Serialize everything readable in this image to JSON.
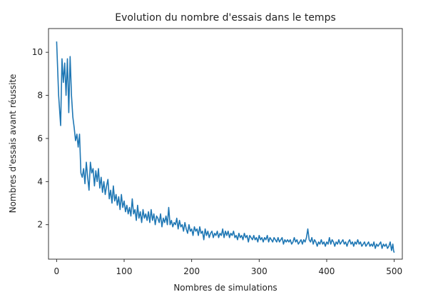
{
  "chart_data": {
    "type": "line",
    "title": "Evolution du nombre d'essais dans le temps",
    "xlabel": "Nombres de simulations",
    "ylabel": "Nombres d'essais avant réussite",
    "xlim": [
      -12,
      512
    ],
    "ylim": [
      0.4,
      11.1
    ],
    "xticks": [
      0,
      100,
      200,
      300,
      400,
      500
    ],
    "yticks": [
      2,
      4,
      6,
      8,
      10
    ],
    "grid": false,
    "legend": "none",
    "series": [
      {
        "color": "#1f77b4",
        "points": [
          [
            0,
            10.5
          ],
          [
            3,
            8.0
          ],
          [
            6,
            6.6
          ],
          [
            8,
            9.7
          ],
          [
            10,
            8.6
          ],
          [
            12,
            9.5
          ],
          [
            14,
            8.0
          ],
          [
            16,
            9.7
          ],
          [
            18,
            7.2
          ],
          [
            20,
            9.8
          ],
          [
            22,
            8.0
          ],
          [
            24,
            7.0
          ],
          [
            26,
            6.5
          ],
          [
            28,
            5.9
          ],
          [
            30,
            6.2
          ],
          [
            32,
            5.6
          ],
          [
            34,
            6.2
          ],
          [
            36,
            4.4
          ],
          [
            38,
            4.2
          ],
          [
            40,
            4.6
          ],
          [
            42,
            3.9
          ],
          [
            44,
            4.9
          ],
          [
            46,
            4.2
          ],
          [
            48,
            3.6
          ],
          [
            50,
            4.9
          ],
          [
            52,
            4.4
          ],
          [
            54,
            4.6
          ],
          [
            56,
            3.8
          ],
          [
            58,
            4.5
          ],
          [
            60,
            4.0
          ],
          [
            62,
            4.6
          ],
          [
            64,
            3.7
          ],
          [
            66,
            4.2
          ],
          [
            68,
            3.5
          ],
          [
            70,
            4.0
          ],
          [
            72,
            3.4
          ],
          [
            74,
            3.8
          ],
          [
            76,
            4.1
          ],
          [
            78,
            3.2
          ],
          [
            80,
            3.6
          ],
          [
            82,
            3.0
          ],
          [
            84,
            3.8
          ],
          [
            86,
            3.1
          ],
          [
            88,
            3.4
          ],
          [
            90,
            2.9
          ],
          [
            92,
            3.3
          ],
          [
            94,
            2.7
          ],
          [
            96,
            3.4
          ],
          [
            98,
            2.8
          ],
          [
            100,
            3.1
          ],
          [
            102,
            2.6
          ],
          [
            104,
            2.9
          ],
          [
            106,
            2.5
          ],
          [
            108,
            2.8
          ],
          [
            110,
            2.4
          ],
          [
            112,
            3.2
          ],
          [
            114,
            2.5
          ],
          [
            116,
            2.7
          ],
          [
            118,
            2.2
          ],
          [
            120,
            2.9
          ],
          [
            122,
            2.3
          ],
          [
            124,
            2.6
          ],
          [
            126,
            2.1
          ],
          [
            128,
            2.7
          ],
          [
            130,
            2.3
          ],
          [
            132,
            2.5
          ],
          [
            134,
            2.2
          ],
          [
            136,
            2.6
          ],
          [
            138,
            2.1
          ],
          [
            140,
            2.7
          ],
          [
            142,
            2.2
          ],
          [
            144,
            2.5
          ],
          [
            146,
            2.0
          ],
          [
            148,
            2.4
          ],
          [
            150,
            2.3
          ],
          [
            152,
            2.1
          ],
          [
            154,
            2.5
          ],
          [
            156,
            1.9
          ],
          [
            158,
            2.3
          ],
          [
            160,
            2.1
          ],
          [
            162,
            2.4
          ],
          [
            164,
            2.0
          ],
          [
            166,
            2.8
          ],
          [
            168,
            2.0
          ],
          [
            170,
            2.2
          ],
          [
            172,
            1.9
          ],
          [
            174,
            2.1
          ],
          [
            176,
            2.0
          ],
          [
            178,
            2.3
          ],
          [
            180,
            1.8
          ],
          [
            182,
            2.2
          ],
          [
            184,
            1.9
          ],
          [
            186,
            2.0
          ],
          [
            188,
            1.7
          ],
          [
            190,
            2.1
          ],
          [
            192,
            1.8
          ],
          [
            194,
            1.6
          ],
          [
            196,
            2.0
          ],
          [
            198,
            1.7
          ],
          [
            200,
            1.8
          ],
          [
            202,
            1.5
          ],
          [
            204,
            1.9
          ],
          [
            206,
            1.7
          ],
          [
            208,
            1.8
          ],
          [
            210,
            1.5
          ],
          [
            212,
            1.9
          ],
          [
            214,
            1.6
          ],
          [
            216,
            1.7
          ],
          [
            218,
            1.3
          ],
          [
            220,
            1.8
          ],
          [
            222,
            1.5
          ],
          [
            224,
            1.7
          ],
          [
            226,
            1.4
          ],
          [
            228,
            1.6
          ],
          [
            230,
            1.7
          ],
          [
            232,
            1.4
          ],
          [
            234,
            1.6
          ],
          [
            236,
            1.5
          ],
          [
            238,
            1.7
          ],
          [
            240,
            1.4
          ],
          [
            242,
            1.6
          ],
          [
            244,
            1.5
          ],
          [
            246,
            1.8
          ],
          [
            248,
            1.4
          ],
          [
            250,
            1.7
          ],
          [
            252,
            1.5
          ],
          [
            254,
            1.7
          ],
          [
            256,
            1.4
          ],
          [
            258,
            1.6
          ],
          [
            260,
            1.5
          ],
          [
            262,
            1.7
          ],
          [
            264,
            1.4
          ],
          [
            266,
            1.5
          ],
          [
            268,
            1.3
          ],
          [
            270,
            1.6
          ],
          [
            272,
            1.4
          ],
          [
            274,
            1.5
          ],
          [
            276,
            1.3
          ],
          [
            278,
            1.6
          ],
          [
            280,
            1.4
          ],
          [
            282,
            1.5
          ],
          [
            284,
            1.2
          ],
          [
            286,
            1.5
          ],
          [
            288,
            1.4
          ],
          [
            290,
            1.3
          ],
          [
            292,
            1.5
          ],
          [
            294,
            1.3
          ],
          [
            296,
            1.4
          ],
          [
            298,
            1.2
          ],
          [
            300,
            1.5
          ],
          [
            302,
            1.3
          ],
          [
            304,
            1.4
          ],
          [
            306,
            1.2
          ],
          [
            308,
            1.4
          ],
          [
            310,
            1.3
          ],
          [
            312,
            1.5
          ],
          [
            314,
            1.2
          ],
          [
            316,
            1.4
          ],
          [
            318,
            1.3
          ],
          [
            320,
            1.2
          ],
          [
            322,
            1.4
          ],
          [
            324,
            1.3
          ],
          [
            326,
            1.2
          ],
          [
            328,
            1.4
          ],
          [
            330,
            1.2
          ],
          [
            332,
            1.3
          ],
          [
            334,
            1.4
          ],
          [
            336,
            1.1
          ],
          [
            338,
            1.3
          ],
          [
            340,
            1.2
          ],
          [
            342,
            1.3
          ],
          [
            344,
            1.2
          ],
          [
            346,
            1.3
          ],
          [
            348,
            1.1
          ],
          [
            350,
            1.2
          ],
          [
            352,
            1.4
          ],
          [
            354,
            1.2
          ],
          [
            356,
            1.3
          ],
          [
            358,
            1.1
          ],
          [
            360,
            1.2
          ],
          [
            362,
            1.3
          ],
          [
            364,
            1.1
          ],
          [
            366,
            1.3
          ],
          [
            368,
            1.2
          ],
          [
            370,
            1.4
          ],
          [
            372,
            1.8
          ],
          [
            374,
            1.3
          ],
          [
            376,
            1.2
          ],
          [
            378,
            1.4
          ],
          [
            380,
            1.1
          ],
          [
            382,
            1.3
          ],
          [
            384,
            1.2
          ],
          [
            386,
            1.0
          ],
          [
            388,
            1.2
          ],
          [
            390,
            1.1
          ],
          [
            392,
            1.3
          ],
          [
            394,
            1.1
          ],
          [
            396,
            1.2
          ],
          [
            398,
            1.0
          ],
          [
            400,
            1.2
          ],
          [
            402,
            1.1
          ],
          [
            404,
            1.4
          ],
          [
            406,
            1.1
          ],
          [
            408,
            1.3
          ],
          [
            410,
            1.2
          ],
          [
            412,
            1.0
          ],
          [
            414,
            1.2
          ],
          [
            416,
            1.1
          ],
          [
            418,
            1.3
          ],
          [
            420,
            1.1
          ],
          [
            422,
            1.2
          ],
          [
            424,
            1.3
          ],
          [
            426,
            1.1
          ],
          [
            428,
            1.2
          ],
          [
            430,
            1.0
          ],
          [
            432,
            1.2
          ],
          [
            434,
            1.3
          ],
          [
            436,
            1.1
          ],
          [
            438,
            1.2
          ],
          [
            440,
            1.0
          ],
          [
            442,
            1.2
          ],
          [
            444,
            1.1
          ],
          [
            446,
            1.3
          ],
          [
            448,
            1.1
          ],
          [
            450,
            1.2
          ],
          [
            452,
            1.0
          ],
          [
            454,
            1.1
          ],
          [
            456,
            1.2
          ],
          [
            458,
            1.0
          ],
          [
            460,
            1.1
          ],
          [
            462,
            1.2
          ],
          [
            464,
            1.0
          ],
          [
            466,
            1.1
          ],
          [
            468,
            1.0
          ],
          [
            470,
            1.2
          ],
          [
            472,
            0.9
          ],
          [
            474,
            1.1
          ],
          [
            476,
            1.0
          ],
          [
            478,
            1.1
          ],
          [
            480,
            1.2
          ],
          [
            482,
            0.9
          ],
          [
            484,
            1.1
          ],
          [
            486,
            1.0
          ],
          [
            488,
            1.1
          ],
          [
            490,
            0.9
          ],
          [
            492,
            1.0
          ],
          [
            494,
            1.2
          ],
          [
            496,
            0.8
          ],
          [
            498,
            1.1
          ],
          [
            499,
            0.8
          ],
          [
            500,
            0.7
          ]
        ]
      }
    ]
  }
}
